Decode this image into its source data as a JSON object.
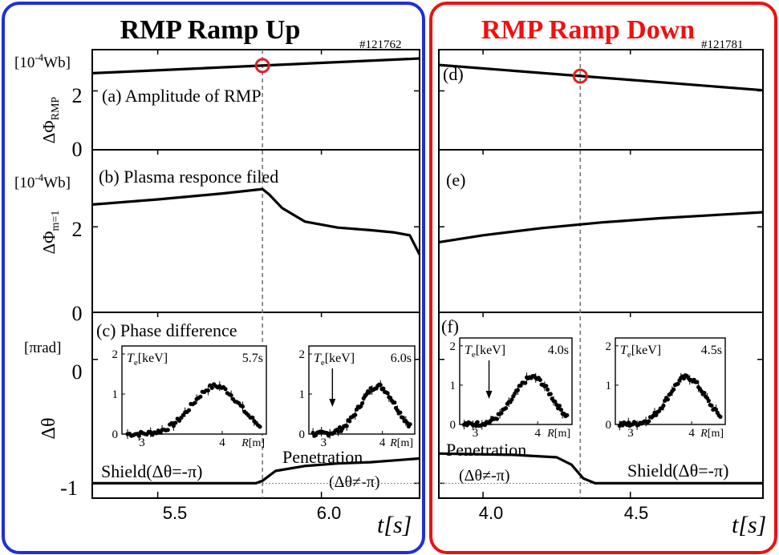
{
  "colors": {
    "left_frame": "#1f2fd8",
    "right_frame": "#ee1111",
    "marker": "#e02020"
  },
  "left": {
    "title": "RMP Ramp Up",
    "shot": "#121762",
    "xticks": [
      5.5,
      6.0
    ],
    "xtick_labels": [
      "5.5",
      "6.0"
    ],
    "dashed_time_label": "",
    "shield_label": "Shield(Δθ=-π)",
    "penetration_label": "Penetration",
    "penetration_sub": "(Δθ≠-π)"
  },
  "right": {
    "title": "RMP Ramp Down",
    "shot": "#121781",
    "xticks": [
      4.0,
      4.5
    ],
    "xtick_labels": [
      "4.0",
      "4.5"
    ],
    "penetration_label": "Penetration",
    "penetration_sub": "(Δθ≠-π)",
    "shield_label": "Shield(Δθ=-π)"
  },
  "xaxis_label": "t[s]",
  "panels": {
    "a": "(a) Amplitude of RMP",
    "b": "(b) Plasma responce filed",
    "c": "(c) Phase difference",
    "d": "(d)",
    "e": "(e)",
    "f": "(f)"
  },
  "yaxes": {
    "amp": {
      "unit": "[10-4Wb]",
      "label": "ΔΦRMP",
      "ticks": [
        "0",
        "2"
      ]
    },
    "resp": {
      "unit": "[10-4Wb]",
      "label": "ΔΦm=1",
      "ticks": [
        "0",
        "2"
      ]
    },
    "phase": {
      "unit": "[πrad]",
      "label": "Δθ",
      "ticks": [
        "0",
        "-1"
      ]
    }
  },
  "insets": [
    {
      "label": "Te[keV]",
      "time": "5.7s",
      "arrow": false
    },
    {
      "label": "Te[keV]",
      "time": "6.0s",
      "arrow": true
    },
    {
      "label": "Te[keV]",
      "time": "4.0s",
      "arrow": true
    },
    {
      "label": "Te[keV]",
      "time": "4.5s",
      "arrow": false
    }
  ],
  "inset_axes": {
    "yticks": [
      "0",
      "1",
      "2"
    ],
    "xticks": [
      "3",
      "4"
    ],
    "xlabel": "R[m]"
  },
  "chart_data": [
    {
      "type": "line",
      "title": "RMP Ramp Up",
      "shot": "#121762",
      "xlim": [
        5.3,
        6.3
      ],
      "dashed_line_x": 5.82,
      "series": [
        {
          "name": "(a) Amplitude of RMP",
          "ylim": [
            0,
            3.4
          ],
          "x": [
            5.3,
            6.3
          ],
          "y": [
            2.6,
            3.1
          ],
          "marker_x": 5.82,
          "marker_y": 2.86
        },
        {
          "name": "(b) Plasma responce filed",
          "ylim": [
            0,
            3.8
          ],
          "x": [
            5.3,
            5.5,
            5.7,
            5.82,
            5.84,
            5.88,
            5.95,
            6.05,
            6.15,
            6.22,
            6.27,
            6.3
          ],
          "y": [
            2.52,
            2.64,
            2.78,
            2.88,
            2.76,
            2.44,
            2.12,
            1.98,
            1.92,
            1.87,
            1.8,
            1.35
          ]
        },
        {
          "name": "(c) Phase difference",
          "ylim": [
            -1.12,
            0.38
          ],
          "x": [
            5.3,
            5.6,
            5.8,
            5.82,
            5.86,
            5.95,
            6.05,
            6.15,
            6.3
          ],
          "y": [
            -1.0,
            -1.0,
            -1.0,
            -0.98,
            -0.9,
            -0.86,
            -0.84,
            -0.83,
            -0.8
          ]
        }
      ]
    },
    {
      "type": "line",
      "title": "RMP Ramp Down",
      "shot": "#121781",
      "xlim": [
        3.85,
        4.95
      ],
      "dashed_line_x": 4.33,
      "series": [
        {
          "name": "(d)",
          "ylim": [
            0,
            3.4
          ],
          "x": [
            3.85,
            4.95
          ],
          "y": [
            2.88,
            2.02
          ],
          "marker_x": 4.33,
          "marker_y": 2.5
        },
        {
          "name": "(e)",
          "ylim": [
            0,
            3.8
          ],
          "x": [
            3.85,
            4.0,
            4.2,
            4.4,
            4.6,
            4.8,
            4.95
          ],
          "y": [
            1.64,
            1.8,
            1.97,
            2.1,
            2.2,
            2.28,
            2.34
          ]
        },
        {
          "name": "(f)",
          "ylim": [
            -1.12,
            0.38
          ],
          "x": [
            3.85,
            4.1,
            4.25,
            4.3,
            4.34,
            4.38,
            4.5,
            4.95
          ],
          "y": [
            -0.76,
            -0.77,
            -0.79,
            -0.85,
            -0.96,
            -1.0,
            -1.0,
            -1.0
          ]
        }
      ]
    }
  ]
}
